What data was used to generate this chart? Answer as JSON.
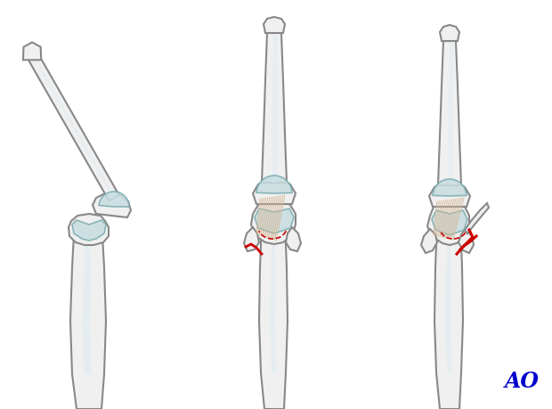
{
  "background_color": "#ffffff",
  "bone_fill": "#f0f0f0",
  "bone_stroke": "#888888",
  "bone_highlight": "#e8eef0",
  "cartilage_fill": "#c8dde0",
  "cartilage_stroke": "#7aacb0",
  "tendon_color": "#d4b896",
  "fracture_color": "#cc0000",
  "ao_color": "#0000cc",
  "figure_width": 6.2,
  "figure_height": 4.59,
  "dpi": 100
}
